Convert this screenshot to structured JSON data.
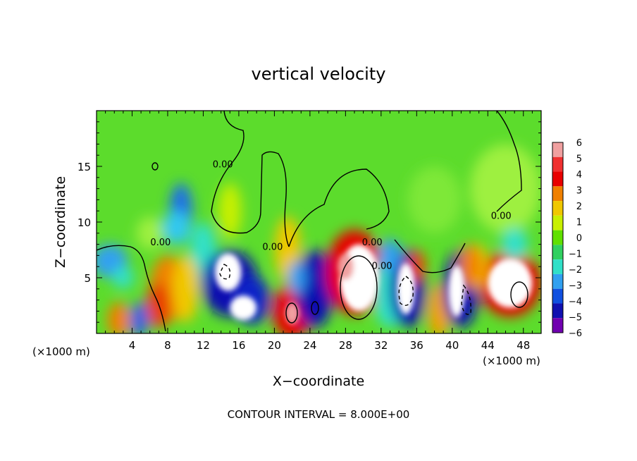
{
  "chart_data": {
    "type": "heatmap",
    "title": "vertical velocity",
    "xlabel": "X−coordinate",
    "ylabel": "Z−coordinate",
    "x_unit_left": "(×1000 m)",
    "x_unit_right": "(×1000 m)",
    "footer": "CONTOUR INTERVAL = 8.000E+00",
    "xlim": [
      0,
      50
    ],
    "ylim": [
      0,
      20
    ],
    "x_ticks": [
      4,
      8,
      12,
      16,
      20,
      24,
      28,
      32,
      36,
      40,
      44,
      48
    ],
    "y_ticks": [
      5,
      10,
      15
    ],
    "colorbar": {
      "levels": [
        "6",
        "5",
        "4",
        "3",
        "2",
        "1",
        "0",
        "−1",
        "−2",
        "−3",
        "−4",
        "−5",
        "−6"
      ],
      "colors": [
        "#f0a0a0",
        "#f03030",
        "#e80000",
        "#f08000",
        "#f0c800",
        "#c8f000",
        "#60e000",
        "#30d060",
        "#30e0c8",
        "#30a0f0",
        "#1050e0",
        "#1010b0",
        "#7000b0"
      ]
    },
    "contour_labels": [
      {
        "text": "0.00",
        "x": 7.2,
        "y": 7.9
      },
      {
        "text": "0.00",
        "x": 14.2,
        "y": 14.9
      },
      {
        "text": "0.00",
        "x": 19.8,
        "y": 7.5
      },
      {
        "text": "0.00",
        "x": 31.0,
        "y": 7.9
      },
      {
        "text": "0.00",
        "x": 32.1,
        "y": 5.8
      },
      {
        "text": "0.00",
        "x": 45.5,
        "y": 10.3
      }
    ]
  }
}
